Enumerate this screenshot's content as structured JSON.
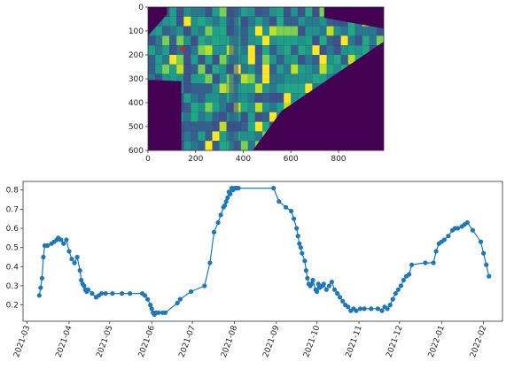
{
  "chart_data": [
    {
      "type": "heatmap",
      "title": "",
      "xlabel": "",
      "ylabel": "",
      "xlim": [
        0,
        990
      ],
      "ylim": [
        600,
        0
      ],
      "x_ticks": [
        "0",
        "200",
        "400",
        "600",
        "800"
      ],
      "y_ticks": [
        "0",
        "100",
        "200",
        "300",
        "400",
        "500",
        "600"
      ],
      "colormap": "viridis",
      "colors": {
        "background": "#440154",
        "low": "#31688e",
        "mid": "#21918c",
        "high": "#fde725"
      },
      "marker": {
        "x": 145,
        "y": 175,
        "color": "#e31a1c"
      }
    },
    {
      "type": "line",
      "title": "",
      "xlabel": "",
      "ylabel": "",
      "color": "#1f77b4",
      "grid": false,
      "xlim": [
        "2021-02-26",
        "2022-02-15"
      ],
      "ylim": [
        0.115,
        0.845
      ],
      "x_ticks": [
        "2021-03",
        "2021-04",
        "2021-05",
        "2021-06",
        "2021-07",
        "2021-08",
        "2021-09",
        "2021-10",
        "2021-11",
        "2021-12",
        "2022-01",
        "2022-02"
      ],
      "y_ticks": [
        "0.2",
        "0.3",
        "0.4",
        "0.5",
        "0.6",
        "0.7",
        "0.8"
      ],
      "series": [
        {
          "x": [
            "2021-03-10",
            "2021-03-11",
            "2021-03-12",
            "2021-03-13",
            "2021-03-14",
            "2021-03-16",
            "2021-03-19",
            "2021-03-21",
            "2021-03-23",
            "2021-03-24",
            "2021-03-26",
            "2021-03-28",
            "2021-03-30",
            "2021-04-01",
            "2021-04-03",
            "2021-04-05",
            "2021-04-07",
            "2021-04-09",
            "2021-04-10",
            "2021-04-11",
            "2021-04-12",
            "2021-04-13",
            "2021-04-14",
            "2021-04-15",
            "2021-04-18",
            "2021-04-21",
            "2021-04-23",
            "2021-04-25",
            "2021-04-28",
            "2021-05-03",
            "2021-05-10",
            "2021-05-16",
            "2021-05-25",
            "2021-05-27",
            "2021-05-29",
            "2021-05-31",
            "2021-06-01",
            "2021-06-02",
            "2021-06-03",
            "2021-06-04",
            "2021-06-06",
            "2021-06-09",
            "2021-06-11",
            "2021-06-20",
            "2021-06-22",
            "2021-06-30",
            "2021-07-10",
            "2021-07-14",
            "2021-07-17",
            "2021-07-20",
            "2021-07-22",
            "2021-07-24",
            "2021-07-25",
            "2021-07-26",
            "2021-07-27",
            "2021-07-28",
            "2021-07-29",
            "2021-07-30",
            "2021-07-31",
            "2021-08-01",
            "2021-08-02",
            "2021-08-03",
            "2021-08-04",
            "2021-08-30",
            "2021-09-03",
            "2021-09-08",
            "2021-09-12",
            "2021-09-14",
            "2021-09-16",
            "2021-09-17",
            "2021-09-18",
            "2021-09-19",
            "2021-09-20",
            "2021-09-22",
            "2021-09-23",
            "2021-09-24",
            "2021-09-25",
            "2021-09-26",
            "2021-09-27",
            "2021-09-28",
            "2021-09-30",
            "2021-10-01",
            "2021-10-02",
            "2021-10-03",
            "2021-10-05",
            "2021-10-06",
            "2021-10-08",
            "2021-10-10",
            "2021-10-12",
            "2021-10-14",
            "2021-10-16",
            "2021-10-18",
            "2021-10-20",
            "2021-10-22",
            "2021-10-24",
            "2021-10-26",
            "2021-10-28",
            "2021-10-30",
            "2021-11-02",
            "2021-11-05",
            "2021-11-10",
            "2021-11-15",
            "2021-11-18",
            "2021-11-20",
            "2021-11-22",
            "2021-11-24",
            "2021-11-26",
            "2021-11-28",
            "2021-11-30",
            "2021-12-02",
            "2021-12-04",
            "2021-12-06",
            "2021-12-08",
            "2021-12-10",
            "2021-12-20",
            "2021-12-26",
            "2021-12-28",
            "2021-12-30",
            "2022-01-01",
            "2022-01-03",
            "2022-01-06",
            "2022-01-09",
            "2022-01-11",
            "2022-01-13",
            "2022-01-16",
            "2022-01-18",
            "2022-01-20",
            "2022-01-24",
            "2022-01-30",
            "2022-02-01",
            "2022-02-03",
            "2022-02-05"
          ],
          "y": [
            0.25,
            0.29,
            0.34,
            0.45,
            0.51,
            0.51,
            0.52,
            0.53,
            0.54,
            0.55,
            0.54,
            0.52,
            0.54,
            0.48,
            0.44,
            0.42,
            0.45,
            0.38,
            0.33,
            0.31,
            0.3,
            0.28,
            0.27,
            0.28,
            0.26,
            0.24,
            0.25,
            0.26,
            0.26,
            0.26,
            0.26,
            0.26,
            0.26,
            0.25,
            0.23,
            0.2,
            0.18,
            0.16,
            0.15,
            0.16,
            0.16,
            0.16,
            0.16,
            0.21,
            0.23,
            0.27,
            0.3,
            0.42,
            0.58,
            0.63,
            0.67,
            0.71,
            0.72,
            0.74,
            0.76,
            0.79,
            0.78,
            0.81,
            0.8,
            0.81,
            0.81,
            0.81,
            0.81,
            0.81,
            0.74,
            0.71,
            0.69,
            0.65,
            0.6,
            0.56,
            0.52,
            0.5,
            0.47,
            0.43,
            0.38,
            0.34,
            0.31,
            0.3,
            0.31,
            0.33,
            0.28,
            0.27,
            0.31,
            0.29,
            0.3,
            0.31,
            0.28,
            0.3,
            0.32,
            0.28,
            0.26,
            0.24,
            0.22,
            0.2,
            0.19,
            0.17,
            0.18,
            0.17,
            0.18,
            0.18,
            0.18,
            0.18,
            0.17,
            0.19,
            0.18,
            0.2,
            0.23,
            0.26,
            0.28,
            0.3,
            0.33,
            0.35,
            0.36,
            0.41,
            0.42,
            0.42,
            0.48,
            0.52,
            0.53,
            0.54,
            0.56,
            0.59,
            0.6,
            0.6,
            0.61,
            0.62,
            0.63,
            0.59,
            0.53,
            0.47,
            0.41,
            0.35
          ]
        }
      ]
    }
  ]
}
